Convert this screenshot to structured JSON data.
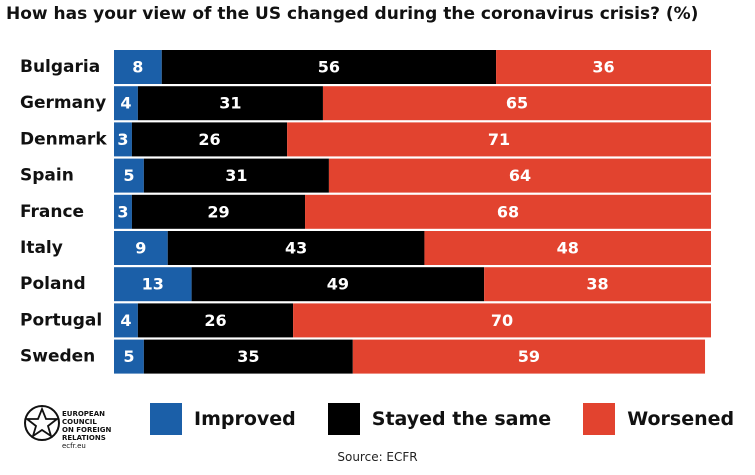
{
  "title": "How has your view of the US changed during the coronavirus crisis? (%)",
  "source": "Source: ECFR",
  "logo": {
    "lines": [
      "EUROPEAN",
      "COUNCIL",
      "ON FOREIGN",
      "RELATIONS"
    ],
    "url": "ecfr.eu"
  },
  "colors": {
    "improved": "#1b5fa8",
    "stayed": "#000000",
    "worsened": "#e2432f"
  },
  "chart_data": {
    "type": "bar",
    "orientation": "horizontal",
    "stacked": true,
    "categories": [
      "Bulgaria",
      "Germany",
      "Denmark",
      "Spain",
      "France",
      "Italy",
      "Poland",
      "Portugal",
      "Sweden"
    ],
    "series": [
      {
        "name": "Improved",
        "values": [
          8,
          4,
          3,
          5,
          3,
          9,
          13,
          4,
          5
        ]
      },
      {
        "name": "Stayed the same",
        "values": [
          56,
          31,
          26,
          31,
          29,
          43,
          49,
          26,
          35
        ]
      },
      {
        "name": "Worsened",
        "values": [
          36,
          65,
          71,
          64,
          68,
          48,
          38,
          70,
          59
        ]
      }
    ],
    "title": "How has your view of the US changed during the coronavirus crisis? (%)",
    "xlim": [
      0,
      100
    ],
    "grid": false,
    "legend_position": "bottom"
  }
}
